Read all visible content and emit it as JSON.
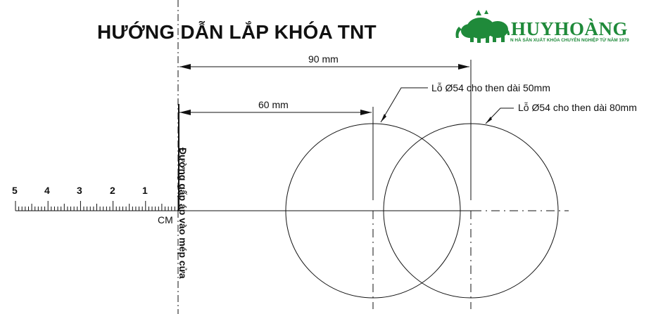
{
  "title": "HƯỚNG DẪN LẮP KHÓA TNT",
  "brand": {
    "name": "HUYHOÀNG",
    "tagline": "N HÀ SẢN XUẤT KHÓA CHUYÊN NGHIỆP TỪ NĂM 1979",
    "color": "#1f8a3a"
  },
  "fold_line_label": "Đường gấp áp vào mép cửa",
  "dimensions": {
    "outer": "90 mm",
    "inner": "60 mm"
  },
  "holes": {
    "first": "Lỗ Ø54 cho then dài 50mm",
    "second": "Lỗ Ø54 cho then dài 80mm"
  },
  "ruler": {
    "unit": "CM",
    "labels": [
      "5",
      "4",
      "3",
      "2",
      "1"
    ]
  }
}
